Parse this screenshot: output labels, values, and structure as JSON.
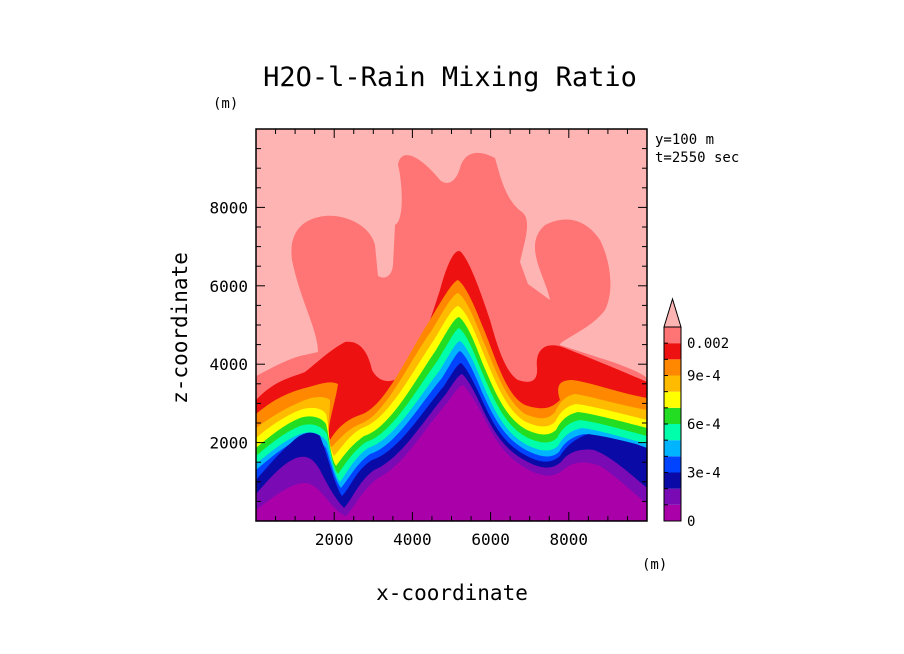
{
  "chart_data": {
    "type": "heatmap",
    "title": "H2O-l-Rain Mixing Ratio",
    "xlabel": "x-coordinate",
    "ylabel": "z-coordinate",
    "x_unit": "(m)",
    "y_unit": "(m)",
    "annotations": [
      "y=100 m",
      "t=2550 sec"
    ],
    "xlim": [
      0,
      10000
    ],
    "ylim": [
      0,
      10000
    ],
    "x_ticks": [
      2000,
      4000,
      6000,
      8000
    ],
    "y_ticks": [
      2000,
      4000,
      6000,
      8000
    ],
    "x_tick_labels": [
      "2000",
      "4000",
      "6000",
      "8000"
    ],
    "y_tick_labels": [
      "2000",
      "4000",
      "6000",
      "8000"
    ],
    "colorbar": {
      "levels": [
        0,
        0.0001,
        0.0002,
        0.0003,
        0.0004,
        0.0005,
        0.0006,
        0.0007,
        0.0008,
        0.0009,
        0.001,
        0.002
      ],
      "colors": [
        "#aa00aa",
        "#7a0bb4",
        "#0a0aa6",
        "#0044ff",
        "#00b4ff",
        "#00ffaa",
        "#22dd22",
        "#ffff00",
        "#ffbb00",
        "#ff8800",
        "#ee1111",
        "#ff7575",
        "#ffb4b4"
      ],
      "tick_labels": [
        "0",
        "3e-4",
        "6e-4",
        "9e-4",
        "0.002"
      ],
      "tick_values": [
        0,
        0.0003,
        0.0006,
        0.0009,
        0.002
      ]
    },
    "regions": [
      {
        "level": "above 0.002",
        "color": "#ffb4b4",
        "description": "background above cloud"
      },
      {
        "level": "0.001-0.002",
        "color": "#ff7575",
        "description": "mushroom-shaped plume"
      },
      {
        "level": "9e-4-0.001",
        "color": "#ee1111",
        "description": "dome band"
      },
      {
        "level": "0-1e-4",
        "color": "#aa00aa",
        "description": "lower layer"
      }
    ]
  }
}
